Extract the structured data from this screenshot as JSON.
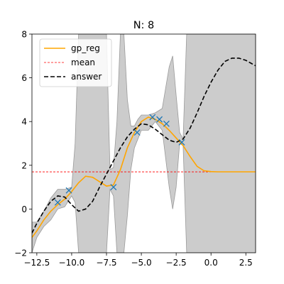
{
  "chart_data": {
    "type": "line",
    "title": "N: 8",
    "xlabel": "",
    "ylabel": "",
    "xlim": [
      -12.85,
      3.2
    ],
    "ylim": [
      -2,
      8
    ],
    "x_ticks": [
      -12.5,
      -10.0,
      -7.5,
      -5.0,
      -2.5,
      0.0,
      2.5
    ],
    "x_tick_labels": [
      "−12.5",
      "−10.0",
      "−7.5",
      "−5.0",
      "−2.5",
      "0.0",
      "2.5"
    ],
    "y_ticks": [
      -2,
      0,
      2,
      4,
      6,
      8
    ],
    "y_tick_labels": [
      "−2",
      "0",
      "2",
      "4",
      "6",
      "8"
    ],
    "legend": {
      "position": "upper-left",
      "entries": [
        {
          "label": "gp_reg",
          "color": "#ffa500",
          "style": "solid"
        },
        {
          "label": "mean",
          "color": "#ff0000",
          "style": "dashed-thin"
        },
        {
          "label": "answer",
          "color": "#000000",
          "style": "dashed"
        }
      ]
    },
    "series": [
      {
        "name": "gp_reg",
        "color": "#ffa500",
        "x": [
          -12.85,
          -12.5,
          -12.0,
          -11.5,
          -11.0,
          -10.5,
          -10.0,
          -9.5,
          -9.0,
          -8.5,
          -8.0,
          -7.5,
          -7.0,
          -6.5,
          -6.0,
          -5.5,
          -5.0,
          -4.5,
          -4.0,
          -3.5,
          -3.0,
          -2.5,
          -2.0,
          -1.5,
          -1.0,
          -0.5,
          0.0,
          0.5,
          1.0,
          2.0,
          3.2
        ],
        "y": [
          -1.3,
          -1.0,
          -0.5,
          -0.1,
          0.2,
          0.45,
          0.8,
          1.2,
          1.5,
          1.45,
          1.25,
          1.05,
          1.1,
          1.8,
          2.8,
          3.5,
          4.0,
          4.2,
          4.1,
          3.9,
          3.6,
          3.25,
          2.9,
          2.4,
          1.95,
          1.75,
          1.71,
          1.7,
          1.7,
          1.7,
          1.7
        ]
      },
      {
        "name": "mean",
        "color": "#ff0000",
        "x": [
          -12.85,
          3.2
        ],
        "y": [
          1.7,
          1.7
        ]
      },
      {
        "name": "answer",
        "color": "#000000",
        "x": [
          -12.85,
          -12.5,
          -12.0,
          -11.5,
          -11.0,
          -10.5,
          -10.0,
          -9.5,
          -9.0,
          -8.5,
          -8.0,
          -7.5,
          -7.0,
          -6.5,
          -6.0,
          -5.5,
          -5.0,
          -4.5,
          -4.0,
          -3.5,
          -3.0,
          -2.5,
          -2.0,
          -1.5,
          -1.0,
          -0.5,
          0.0,
          0.5,
          1.0,
          1.5,
          2.0,
          2.5,
          3.2
        ],
        "y": [
          -1.1,
          -0.65,
          -0.1,
          0.35,
          0.6,
          0.55,
          0.2,
          -0.1,
          0.0,
          0.35,
          1.0,
          1.6,
          2.2,
          2.8,
          3.3,
          3.65,
          3.9,
          3.85,
          3.65,
          3.4,
          3.15,
          3.05,
          3.2,
          3.7,
          4.4,
          5.15,
          5.8,
          6.35,
          6.75,
          6.9,
          6.9,
          6.8,
          6.55
        ]
      }
    ],
    "confidence_band": {
      "color": "#bfbfbf",
      "x": [
        -12.85,
        -12.5,
        -12.0,
        -11.5,
        -11.0,
        -10.5,
        -10.0,
        -9.75,
        -9.5,
        -9.0,
        -8.5,
        -8.0,
        -7.5,
        -7.25,
        -7.0,
        -6.75,
        -6.5,
        -6.25,
        -6.0,
        -5.75,
        -5.5,
        -5.25,
        -5.0,
        -4.5,
        -4.0,
        -3.5,
        -3.0,
        -2.75,
        -2.5,
        -2.25,
        -2.0,
        -1.75,
        -1.5,
        -1.0,
        0.0,
        1.0,
        2.0,
        3.2
      ],
      "lower": [
        -2.0,
        -1.3,
        -0.8,
        -0.5,
        0.0,
        0.1,
        0.6,
        0.3,
        -2.0,
        -2.0,
        -2.0,
        -2.0,
        -2.0,
        0.9,
        0.6,
        -2.0,
        -2.0,
        -2.0,
        -0.3,
        1.8,
        2.8,
        3.2,
        3.6,
        3.6,
        4.0,
        3.6,
        1.0,
        0.0,
        1.0,
        3.0,
        2.9,
        -2.0,
        -2.0,
        -2.0,
        -2.0,
        -2.0,
        -2.0,
        -2.0
      ],
      "upper": [
        -0.6,
        -0.6,
        -0.1,
        0.5,
        0.9,
        0.9,
        1.0,
        3.0,
        8.0,
        8.0,
        8.0,
        8.0,
        8.0,
        1.8,
        1.9,
        4.0,
        8.0,
        8.0,
        5.0,
        3.8,
        3.8,
        4.1,
        4.3,
        4.3,
        4.4,
        4.6,
        6.5,
        7.0,
        5.2,
        3.5,
        3.2,
        8.0,
        8.0,
        8.0,
        8.0,
        8.0,
        8.0,
        8.0
      ]
    },
    "observations": {
      "color": "#1f77b4",
      "marker": "x",
      "x": [
        -11.0,
        -10.2,
        -7.0,
        -5.3,
        -4.2,
        -3.7,
        -3.2,
        -2.1
      ],
      "y": [
        0.3,
        0.85,
        1.0,
        3.5,
        4.2,
        4.1,
        3.9,
        3.05
      ]
    },
    "grid": false
  }
}
